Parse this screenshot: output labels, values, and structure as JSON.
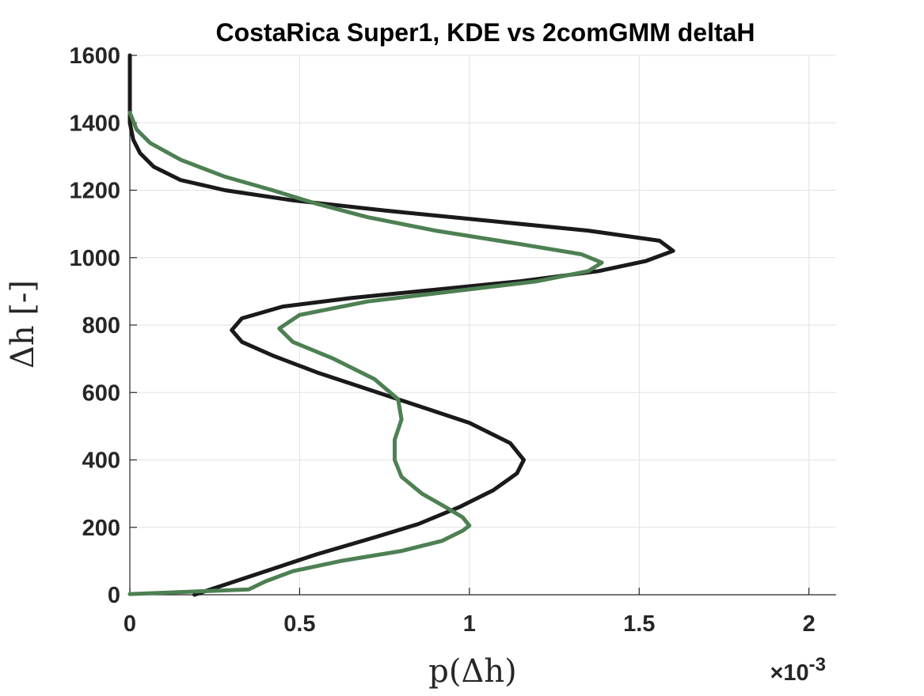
{
  "chart_data": {
    "type": "line",
    "orientation": "density on x-axis, delta h on y-axis",
    "title": "CostaRica Super1, KDE vs 2comGMM deltaH",
    "xlabel": "p(Δh)",
    "ylabel": "Δh [-]",
    "x_exponent_label": "×10",
    "x_exponent_power": "-3",
    "x_scale_factor": 0.001,
    "xlim": [
      0,
      2.08
    ],
    "ylim": [
      0,
      1600
    ],
    "xticks": [
      0,
      0.5,
      1,
      1.5,
      2
    ],
    "xtick_labels": [
      "0",
      "0.5",
      "1",
      "1.5",
      "2"
    ],
    "yticks": [
      0,
      200,
      400,
      600,
      800,
      1000,
      1200,
      1400,
      1600
    ],
    "ytick_labels": [
      "0",
      "200",
      "400",
      "600",
      "800",
      "1000",
      "1200",
      "1400",
      "1600"
    ],
    "grid": true,
    "legend": "none",
    "series": [
      {
        "color": "#1a1a1a",
        "points": [
          [
            0.19,
            0
          ],
          [
            0.28,
            30
          ],
          [
            0.4,
            70
          ],
          [
            0.55,
            120
          ],
          [
            0.72,
            170
          ],
          [
            0.85,
            210
          ],
          [
            0.97,
            260
          ],
          [
            1.07,
            310
          ],
          [
            1.14,
            360
          ],
          [
            1.16,
            400
          ],
          [
            1.12,
            450
          ],
          [
            1.0,
            510
          ],
          [
            0.85,
            560
          ],
          [
            0.7,
            610
          ],
          [
            0.55,
            660
          ],
          [
            0.42,
            710
          ],
          [
            0.33,
            750
          ],
          [
            0.3,
            785
          ],
          [
            0.33,
            820
          ],
          [
            0.45,
            855
          ],
          [
            0.65,
            880
          ],
          [
            0.9,
            905
          ],
          [
            1.15,
            930
          ],
          [
            1.38,
            960
          ],
          [
            1.52,
            990
          ],
          [
            1.6,
            1020
          ],
          [
            1.56,
            1050
          ],
          [
            1.35,
            1080
          ],
          [
            1.05,
            1110
          ],
          [
            0.75,
            1140
          ],
          [
            0.48,
            1170
          ],
          [
            0.28,
            1200
          ],
          [
            0.15,
            1230
          ],
          [
            0.07,
            1270
          ],
          [
            0.03,
            1310
          ],
          [
            0.01,
            1350
          ],
          [
            0.0,
            1400
          ],
          [
            0.0,
            1500
          ],
          [
            0.0,
            1600
          ]
        ]
      },
      {
        "color": "#4d8053",
        "points": [
          [
            0.0,
            2
          ],
          [
            0.15,
            8
          ],
          [
            0.35,
            16
          ],
          [
            0.4,
            40
          ],
          [
            0.48,
            70
          ],
          [
            0.62,
            100
          ],
          [
            0.8,
            130
          ],
          [
            0.92,
            160
          ],
          [
            0.98,
            190
          ],
          [
            1.0,
            205
          ],
          [
            0.98,
            230
          ],
          [
            0.93,
            260
          ],
          [
            0.86,
            300
          ],
          [
            0.8,
            350
          ],
          [
            0.78,
            400
          ],
          [
            0.78,
            460
          ],
          [
            0.8,
            520
          ],
          [
            0.79,
            580
          ],
          [
            0.72,
            640
          ],
          [
            0.6,
            700
          ],
          [
            0.48,
            750
          ],
          [
            0.44,
            790
          ],
          [
            0.5,
            830
          ],
          [
            0.7,
            870
          ],
          [
            0.95,
            900
          ],
          [
            1.2,
            930
          ],
          [
            1.35,
            960
          ],
          [
            1.39,
            985
          ],
          [
            1.33,
            1010
          ],
          [
            1.15,
            1040
          ],
          [
            0.9,
            1080
          ],
          [
            0.7,
            1120
          ],
          [
            0.55,
            1160
          ],
          [
            0.42,
            1200
          ],
          [
            0.28,
            1240
          ],
          [
            0.15,
            1290
          ],
          [
            0.06,
            1340
          ],
          [
            0.02,
            1380
          ],
          [
            0.0,
            1430
          ]
        ]
      }
    ]
  }
}
